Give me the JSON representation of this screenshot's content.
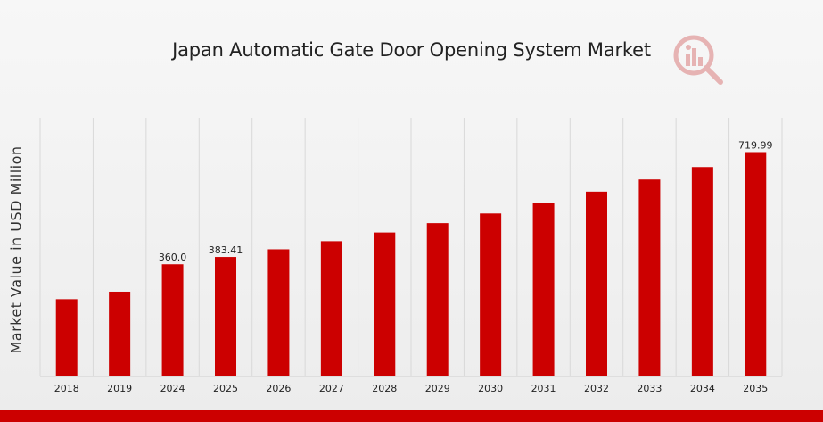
{
  "chart_data": {
    "type": "bar",
    "title": "Japan Automatic Gate Door Opening System Market",
    "xlabel": "",
    "ylabel": "Market Value in USD Million",
    "categories": [
      "2018",
      "2019",
      "2024",
      "2025",
      "2026",
      "2027",
      "2028",
      "2029",
      "2030",
      "2031",
      "2032",
      "2033",
      "2034",
      "2035"
    ],
    "values": [
      248,
      272,
      360.0,
      383.41,
      408,
      434,
      462,
      492,
      523,
      558,
      593,
      632,
      672,
      719.99
    ],
    "data_labels": [
      "",
      "",
      "360.0",
      "383.41",
      "",
      "",
      "",
      "",
      "",
      "",
      "",
      "",
      "",
      "719.99"
    ],
    "ylim": [
      0,
      750
    ],
    "grid": "vertical",
    "legend": "none",
    "colors": {
      "bar": "#cc0000",
      "grid": "#d9d9d9",
      "accent": "#cc0000"
    }
  },
  "logo": {
    "icon": "bar-chart-magnifier-icon"
  }
}
